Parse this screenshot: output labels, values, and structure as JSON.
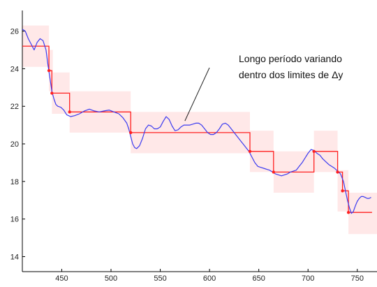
{
  "chart_data": {
    "type": "line",
    "title": "",
    "xlabel": "",
    "ylabel": "",
    "xlim": [
      410,
      770
    ],
    "ylim": [
      13.2,
      27.1
    ],
    "x_ticks": [
      450,
      500,
      550,
      600,
      650,
      700,
      750
    ],
    "x_tick_labels": [
      "450",
      "500",
      "550",
      "600",
      "650",
      "700",
      "750"
    ],
    "y_ticks": [
      14,
      16,
      18,
      20,
      22,
      24,
      26
    ],
    "y_tick_labels": [
      "14",
      "16",
      "18",
      "20",
      "22",
      "24",
      "26"
    ],
    "grid": false,
    "legend": "none",
    "colors": {
      "signal": "#3b3bf0",
      "step": "#ff2020",
      "band": "#ffe4e4",
      "axis": "#000000"
    },
    "annotation": {
      "lines": [
        "Longo período variando",
        "dentro dos limites de Δy"
      ],
      "target_x": 575,
      "target_y": 21.0
    },
    "series": [
      {
        "x": [
          410,
          413,
          416,
          419,
          422,
          425,
          428,
          431,
          434,
          436,
          438,
          440,
          442,
          444,
          446,
          449,
          452,
          455,
          459,
          463,
          468,
          473,
          478,
          483,
          488,
          493,
          498,
          503,
          508,
          512,
          516,
          518,
          520,
          522,
          524,
          526,
          529,
          532,
          535,
          538,
          541,
          544,
          547,
          550,
          553,
          556,
          559,
          562,
          565,
          568,
          571,
          574,
          577,
          580,
          583,
          586,
          589,
          592,
          595,
          598,
          601,
          604,
          607,
          610,
          613,
          616,
          619,
          622,
          625,
          628,
          631,
          634,
          637,
          640,
          643,
          646,
          649,
          652,
          655,
          658,
          661,
          664,
          667,
          670,
          673,
          676,
          679,
          682,
          685,
          688,
          691,
          694,
          697,
          700,
          703,
          706,
          709,
          712,
          715,
          718,
          721,
          724,
          727,
          730,
          733,
          736,
          738,
          740,
          742,
          744,
          746,
          748,
          750,
          752,
          754,
          756,
          758,
          760,
          762,
          764
        ],
        "y": [
          26.1,
          26.0,
          25.6,
          25.3,
          25.0,
          25.4,
          25.6,
          25.5,
          25.0,
          24.2,
          23.5,
          22.8,
          22.4,
          22.1,
          22.0,
          21.95,
          21.8,
          21.55,
          21.45,
          21.5,
          21.6,
          21.75,
          21.85,
          21.75,
          21.7,
          21.75,
          21.8,
          21.7,
          21.6,
          21.4,
          21.1,
          20.8,
          20.4,
          20.0,
          19.8,
          19.75,
          19.9,
          20.3,
          20.8,
          21.0,
          20.95,
          20.8,
          20.8,
          20.9,
          21.2,
          21.45,
          21.3,
          20.95,
          20.7,
          20.75,
          20.9,
          21.0,
          21.0,
          21.0,
          21.05,
          21.1,
          21.1,
          21.0,
          20.8,
          20.6,
          20.5,
          20.5,
          20.6,
          20.8,
          21.05,
          21.1,
          21.0,
          20.8,
          20.6,
          20.4,
          20.2,
          20.0,
          19.8,
          19.6,
          19.3,
          19.0,
          18.8,
          18.75,
          18.7,
          18.65,
          18.6,
          18.5,
          18.4,
          18.35,
          18.3,
          18.35,
          18.4,
          18.5,
          18.55,
          18.6,
          18.8,
          19.0,
          19.25,
          19.5,
          19.7,
          19.65,
          19.5,
          19.4,
          19.2,
          19.05,
          18.9,
          18.8,
          18.7,
          18.55,
          18.4,
          18.0,
          17.5,
          17.0,
          16.6,
          16.3,
          16.4,
          16.7,
          16.95,
          17.1,
          17.2,
          17.2,
          17.15,
          17.1,
          17.1,
          17.15
        ]
      },
      {
        "step_x": [
          410,
          437,
          437,
          440,
          440,
          458,
          458,
          520,
          520,
          641,
          641,
          665,
          665,
          706,
          706,
          730,
          730,
          735,
          735,
          741,
          741,
          765
        ],
        "step_y": [
          25.2,
          25.2,
          23.9,
          23.9,
          22.7,
          22.7,
          21.7,
          21.7,
          20.6,
          20.6,
          19.6,
          19.6,
          18.5,
          18.5,
          19.6,
          19.6,
          18.5,
          18.5,
          17.5,
          17.5,
          16.35,
          16.35
        ],
        "markers_x": [
          437,
          440,
          458,
          520,
          641,
          665,
          706,
          730,
          735,
          741
        ],
        "markers_y": [
          23.9,
          22.7,
          21.7,
          20.6,
          19.6,
          18.5,
          19.6,
          18.5,
          17.5,
          16.35
        ],
        "bands": [
          {
            "x0": 410,
            "x1": 437,
            "y0": 24.1,
            "y1": 26.3
          },
          {
            "x0": 437,
            "x1": 441,
            "y0": 22.8,
            "y1": 25.0
          },
          {
            "x0": 440,
            "x1": 458,
            "y0": 21.6,
            "y1": 23.8
          },
          {
            "x0": 458,
            "x1": 520,
            "y0": 20.6,
            "y1": 22.8
          },
          {
            "x0": 520,
            "x1": 641,
            "y0": 19.5,
            "y1": 21.7
          },
          {
            "x0": 641,
            "x1": 665,
            "y0": 18.5,
            "y1": 20.7
          },
          {
            "x0": 665,
            "x1": 706,
            "y0": 17.4,
            "y1": 19.6
          },
          {
            "x0": 706,
            "x1": 730,
            "y0": 18.5,
            "y1": 20.7
          },
          {
            "x0": 730,
            "x1": 741,
            "y0": 16.4,
            "y1": 18.6
          },
          {
            "x0": 741,
            "x1": 770,
            "y0": 15.2,
            "y1": 17.4
          }
        ]
      }
    ]
  }
}
